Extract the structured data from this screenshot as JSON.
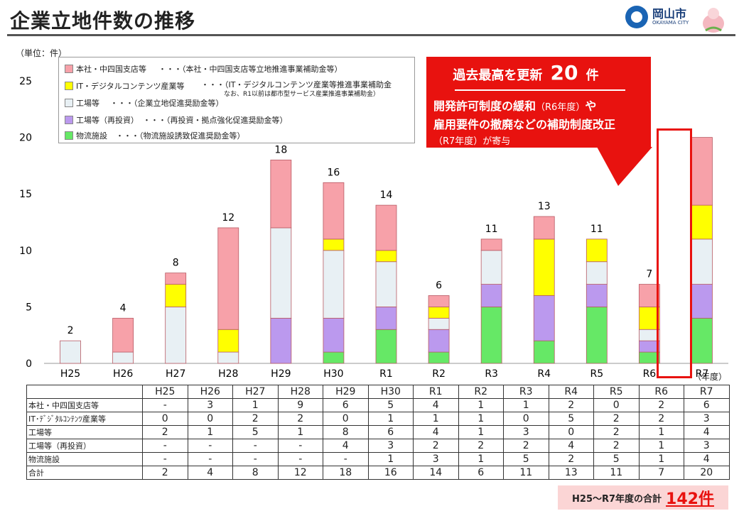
{
  "header": {
    "title": "企業立地件数の推移",
    "city_name": "岡山市",
    "city_romaji": "OKAYAMA CITY"
  },
  "unit_label": "（単位：件）",
  "year_unit_label": "（年度）",
  "legend": [
    {
      "label": "本社・中四国支店等",
      "desc": "・・・（本社・中四国支店等立地推進事業補助金等）",
      "color": "#f7a1a9"
    },
    {
      "label": "IT・デジタルコンテンツ産業等",
      "desc": "・・・（IT・デジタルコンテンツ産業等推進事業補助金",
      "color": "#ffff00"
    },
    {
      "label": "工場等",
      "desc": "・・・（企業立地促進奨励金等）",
      "color": "#e8f0f4"
    },
    {
      "label": "工場等（再投資）",
      "desc": "・・・（再投資・拠点強化促進奨励金等）",
      "color": "#bb99ee"
    },
    {
      "label": "物流施設",
      "desc": "・・・（物流施設誘致促進奨励金等）",
      "color": "#66e866"
    }
  ],
  "legend_note": "なお、R1以前は都市型サービス産業推進事業補助金）",
  "callout": {
    "head_text": "過去最高を更新",
    "head_number": "20",
    "head_unit": "件",
    "line1_main": "開発許可制度の緩和",
    "line1_sub": "（R6年度）",
    "line1_tail": "や",
    "line2": "雇用要件の撤廃などの補助制度改正",
    "line3": "（R7年度）が寄与"
  },
  "chart_data": {
    "type": "bar",
    "stacked": true,
    "categories": [
      "H25",
      "H26",
      "H27",
      "H28",
      "H29",
      "H30",
      "R1",
      "R2",
      "R3",
      "R4",
      "R5",
      "R6",
      "R7"
    ],
    "ylim": [
      0,
      25
    ],
    "yticks": [
      0,
      5,
      10,
      15,
      20,
      25
    ],
    "grid": false,
    "series": [
      {
        "name": "物流施設",
        "color": "#66e866",
        "values": [
          0,
          0,
          0,
          0,
          0,
          1,
          3,
          1,
          5,
          2,
          5,
          1,
          4
        ]
      },
      {
        "name": "工場等（再投資）",
        "color": "#bb99ee",
        "values": [
          0,
          0,
          0,
          0,
          4,
          3,
          2,
          2,
          2,
          4,
          2,
          1,
          3
        ]
      },
      {
        "name": "工場等",
        "color": "#e8f0f4",
        "values": [
          2,
          1,
          5,
          1,
          8,
          6,
          4,
          1,
          3,
          0,
          2,
          1,
          4
        ]
      },
      {
        "name": "IT・デジタルコンテンツ産業等",
        "color": "#ffff00",
        "values": [
          0,
          0,
          2,
          2,
          0,
          1,
          1,
          1,
          0,
          5,
          2,
          2,
          3
        ]
      },
      {
        "name": "本社・中四国支店等",
        "color": "#f7a1a9",
        "values": [
          0,
          3,
          1,
          9,
          6,
          5,
          4,
          1,
          1,
          2,
          0,
          2,
          6
        ]
      }
    ],
    "totals": [
      2,
      4,
      8,
      12,
      18,
      16,
      14,
      6,
      11,
      13,
      11,
      7,
      20
    ]
  },
  "table": {
    "header": [
      "H25",
      "H26",
      "H27",
      "H28",
      "H29",
      "H30",
      "R1",
      "R2",
      "R3",
      "R4",
      "R5",
      "R6",
      "R7"
    ],
    "rows": [
      {
        "label": "本社・中四国支店等",
        "cells": [
          "-",
          "3",
          "1",
          "9",
          "6",
          "5",
          "4",
          "1",
          "1",
          "2",
          "0",
          "2",
          "6"
        ]
      },
      {
        "label": "IT･ﾃﾞｼﾞﾀﾙｺﾝﾃﾝﾂ産業等",
        "cells": [
          "0",
          "0",
          "2",
          "2",
          "0",
          "1",
          "1",
          "1",
          "0",
          "5",
          "2",
          "2",
          "3"
        ]
      },
      {
        "label": "工場等",
        "cells": [
          "2",
          "1",
          "5",
          "1",
          "8",
          "6",
          "4",
          "1",
          "3",
          "0",
          "2",
          "1",
          "4"
        ]
      },
      {
        "label": "工場等（再投資）",
        "cells": [
          "-",
          "-",
          "-",
          "-",
          "4",
          "3",
          "2",
          "2",
          "2",
          "4",
          "2",
          "1",
          "3"
        ]
      },
      {
        "label": "物流施設",
        "cells": [
          "-",
          "-",
          "-",
          "-",
          "-",
          "1",
          "3",
          "1",
          "5",
          "2",
          "5",
          "1",
          "4"
        ]
      },
      {
        "label": "合計",
        "cells": [
          "2",
          "4",
          "8",
          "12",
          "18",
          "16",
          "14",
          "6",
          "11",
          "13",
          "11",
          "7",
          "20"
        ]
      }
    ]
  },
  "total_box": {
    "label": "H25～R7年度の合計",
    "value": "142件"
  }
}
